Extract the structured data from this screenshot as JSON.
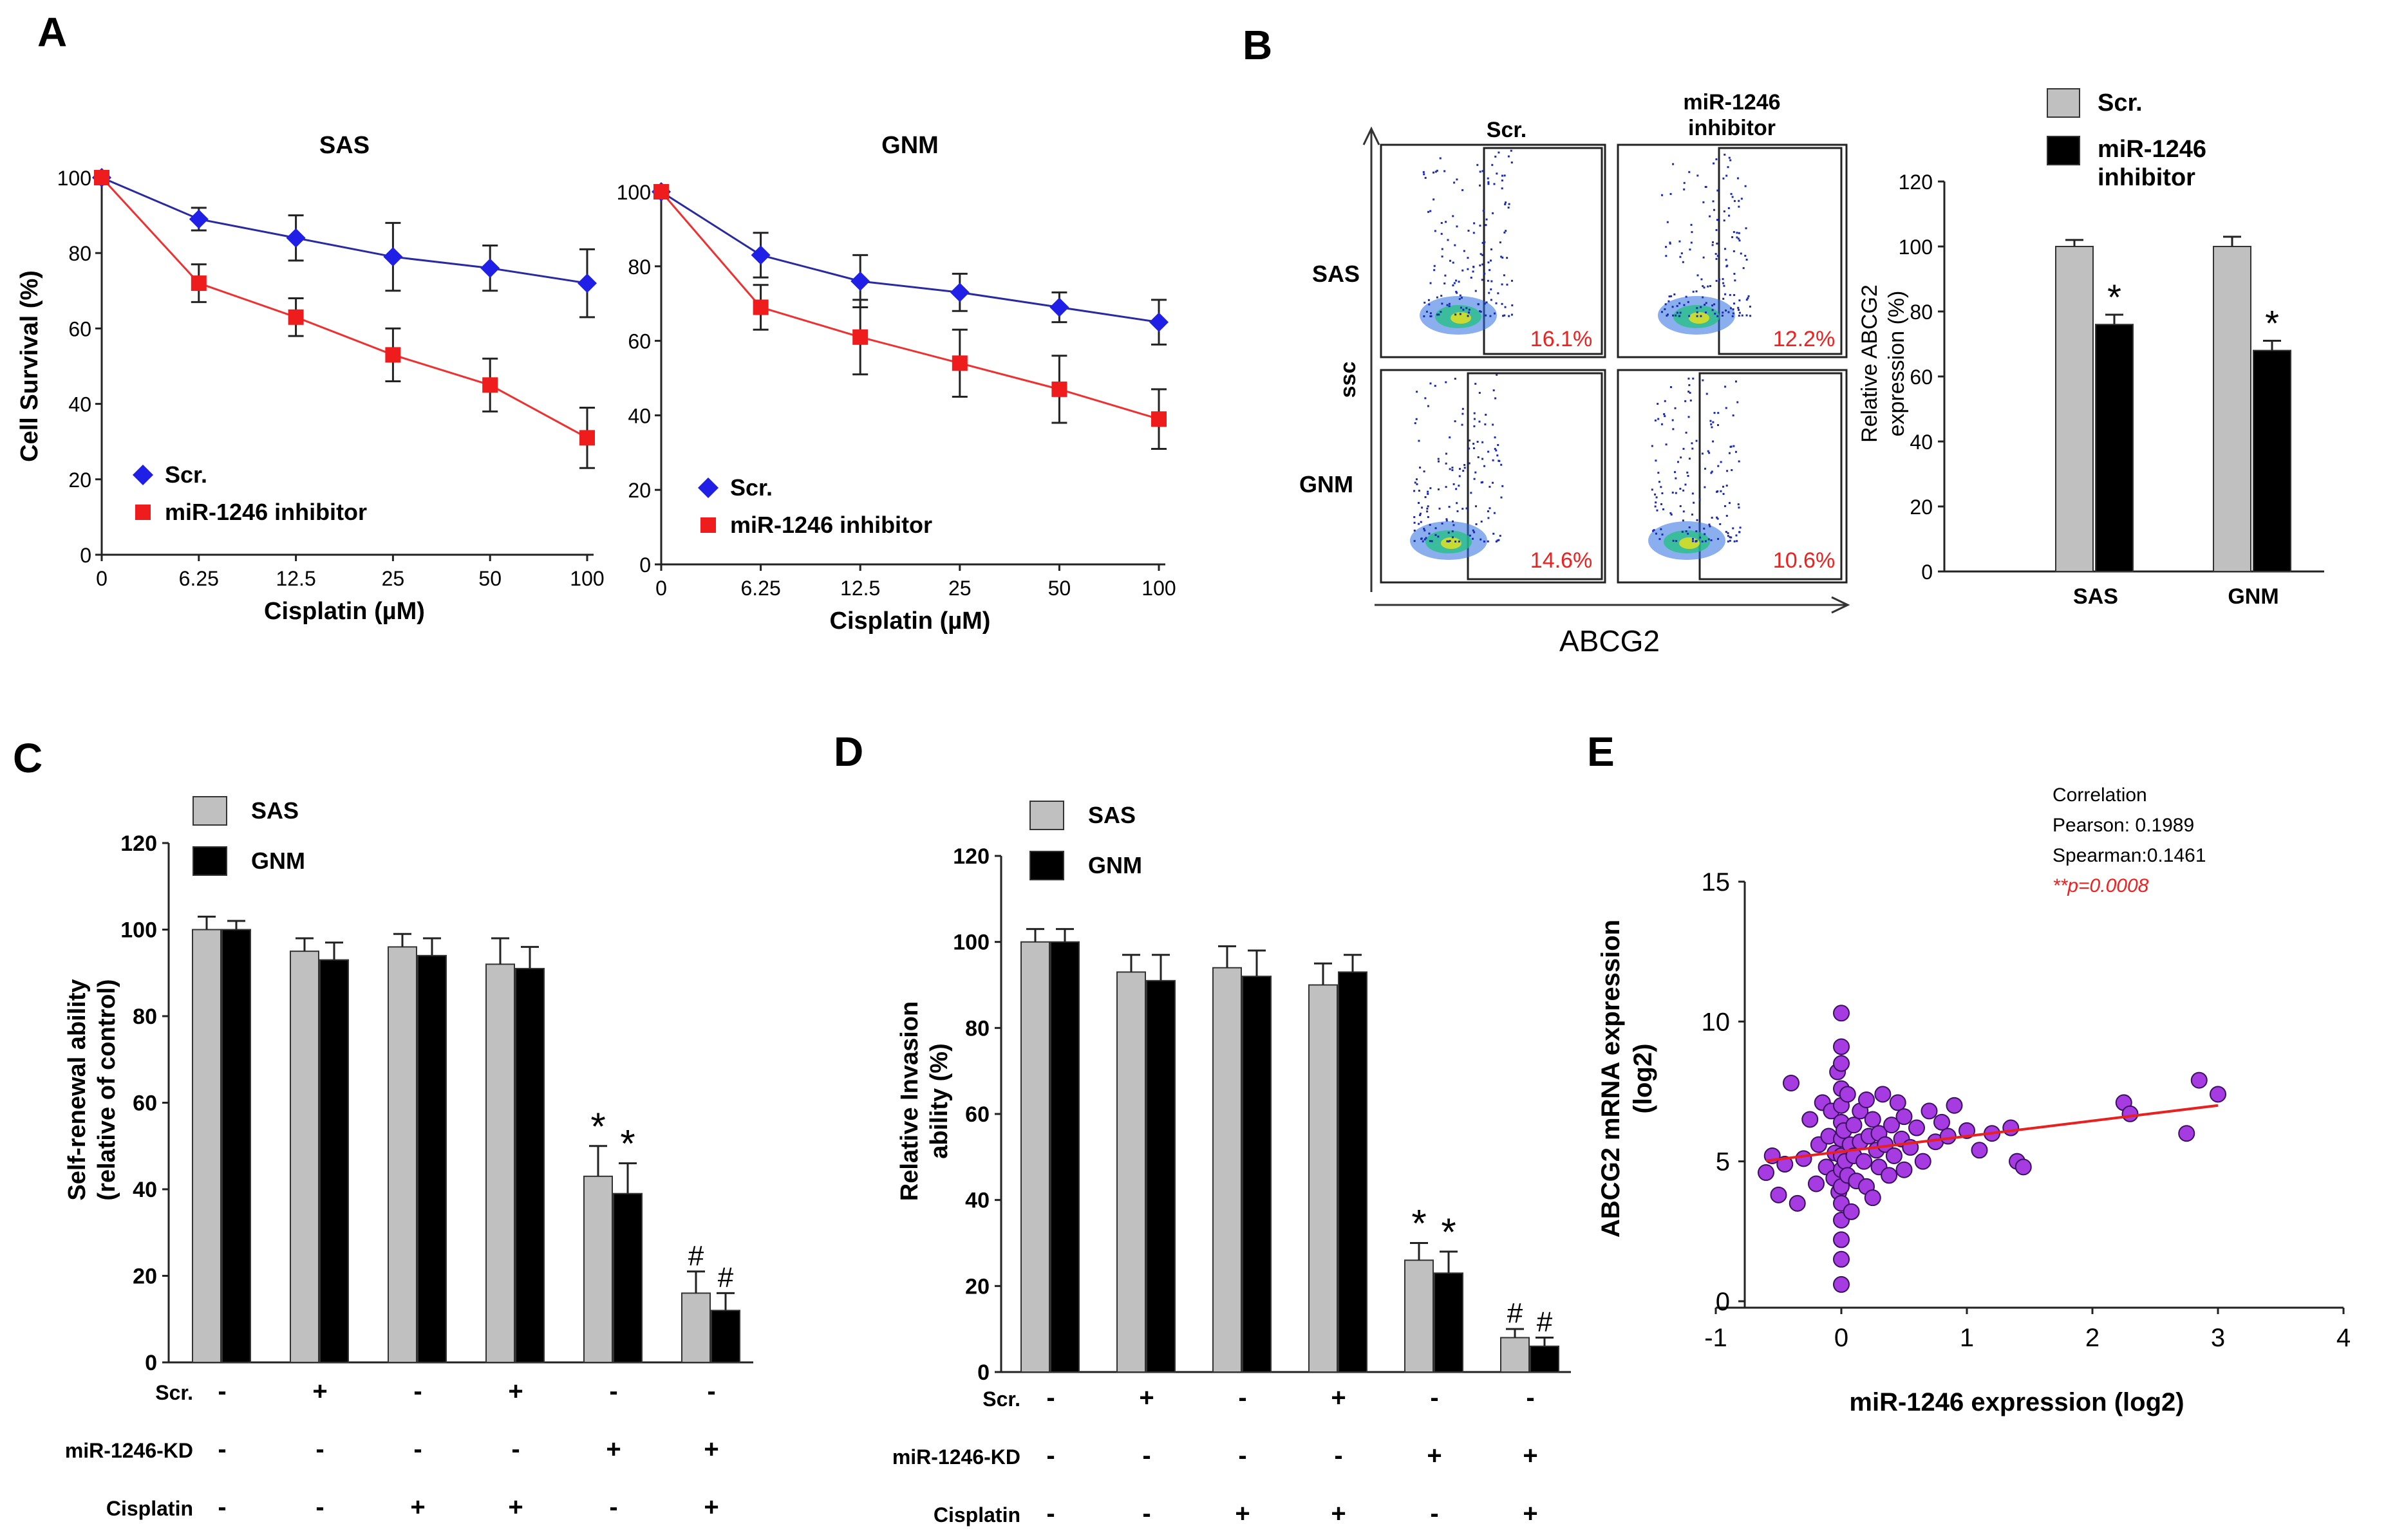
{
  "colors": {
    "scr": "#1f1fe6",
    "inhibitor": "#ee1c1c",
    "sas_bar": "#c0c0c0",
    "gnm_bar": "#000000",
    "scatter": "#a53be0",
    "fit_line": "#e82020",
    "gate_pct": "#ee2020",
    "pvalue": "#ee2020"
  },
  "panels": {
    "A": {
      "letter": "A"
    },
    "B": {
      "letter": "B",
      "flow": {
        "col_labels": [
          "Scr.",
          "miR-1246\ninhibitor"
        ],
        "row_labels": [
          "SAS",
          "GNM"
        ],
        "percentages": [
          [
            "16.1%",
            "12.2%"
          ],
          [
            "14.6%",
            "10.6%"
          ]
        ],
        "xlabel": "ABCG2",
        "ylabel": "ssc"
      }
    },
    "C": {
      "letter": "C"
    },
    "D": {
      "letter": "D"
    },
    "E": {
      "letter": "E",
      "stats": [
        "Correlation",
        "Pearson: 0.1989",
        "Spearman:0.1461"
      ],
      "pvalue": "**p=0.0008"
    }
  },
  "chart_data": [
    {
      "id": "A-SAS",
      "type": "line",
      "title": "SAS",
      "xlabel": "Cisplatin (µM)",
      "ylabel": "Cell Survival (%)",
      "categories": [
        "0",
        "6.25",
        "12.5",
        "25",
        "50",
        "100"
      ],
      "ylim": [
        0,
        100
      ],
      "yticks": [
        0,
        20,
        40,
        60,
        80,
        100
      ],
      "series": [
        {
          "name": "Scr.",
          "marker": "diamond",
          "values": [
            100,
            89,
            84,
            79,
            76,
            72
          ],
          "errors": [
            0,
            3,
            6,
            9,
            6,
            9
          ]
        },
        {
          "name": "miR-1246 inhibitor",
          "marker": "square",
          "values": [
            100,
            72,
            63,
            53,
            45,
            31
          ],
          "errors": [
            0,
            5,
            5,
            7,
            7,
            8
          ]
        }
      ]
    },
    {
      "id": "A-GNM",
      "type": "line",
      "title": "GNM",
      "xlabel": "Cisplatin (µM)",
      "ylabel": "",
      "categories": [
        "0",
        "6.25",
        "12.5",
        "25",
        "50",
        "100"
      ],
      "ylim": [
        0,
        100
      ],
      "yticks": [
        0,
        20,
        40,
        60,
        80,
        100
      ],
      "series": [
        {
          "name": "Scr.",
          "marker": "diamond",
          "values": [
            100,
            83,
            76,
            73,
            69,
            65
          ],
          "errors": [
            0,
            6,
            7,
            5,
            4,
            6
          ]
        },
        {
          "name": "miR-1246 inhibitor",
          "marker": "square",
          "values": [
            100,
            69,
            61,
            54,
            47,
            39
          ],
          "errors": [
            0,
            6,
            10,
            9,
            9,
            8
          ]
        }
      ]
    },
    {
      "id": "B-bar",
      "type": "bar",
      "xlabel": "",
      "ylabel": "Relative ABCG2\nexpression (%)",
      "categories": [
        "SAS",
        "GNM"
      ],
      "ylim": [
        0,
        120
      ],
      "yticks": [
        0,
        20,
        40,
        60,
        80,
        100,
        120
      ],
      "series": [
        {
          "name": "Scr.",
          "values": [
            100,
            100
          ],
          "errors": [
            2,
            3
          ]
        },
        {
          "name": "miR-1246\ninhibitor",
          "values": [
            76,
            68
          ],
          "errors": [
            3,
            3
          ]
        }
      ],
      "annotations": [
        {
          "series": 1,
          "index": 0,
          "text": "*"
        },
        {
          "series": 1,
          "index": 1,
          "text": "*"
        }
      ]
    },
    {
      "id": "C",
      "type": "bar",
      "ylabel": "Self-renewal ability\n(relative of control)",
      "groups": 6,
      "ylim": [
        0,
        120
      ],
      "yticks": [
        0,
        20,
        40,
        60,
        80,
        100,
        120
      ],
      "series": [
        {
          "name": "SAS",
          "values": [
            100,
            95,
            96,
            92,
            43,
            16
          ],
          "errors": [
            3,
            3,
            3,
            6,
            7,
            5
          ]
        },
        {
          "name": "GNM",
          "values": [
            100,
            93,
            94,
            91,
            39,
            12
          ],
          "errors": [
            2,
            4,
            4,
            5,
            7,
            4
          ]
        }
      ],
      "annotations": [
        {
          "series": 0,
          "index": 4,
          "text": "*"
        },
        {
          "series": 1,
          "index": 4,
          "text": "*"
        },
        {
          "series": 0,
          "index": 5,
          "text": "#"
        },
        {
          "series": 1,
          "index": 5,
          "text": "#"
        }
      ],
      "conditions": [
        {
          "label": "Scr.",
          "signs": [
            "-",
            "+",
            "-",
            "+",
            "-",
            "-"
          ]
        },
        {
          "label": "miR-1246-KD",
          "signs": [
            "-",
            "-",
            "-",
            "-",
            "+",
            "+"
          ]
        },
        {
          "label": "Cisplatin",
          "signs": [
            "-",
            "-",
            "+",
            "+",
            "-",
            "+"
          ]
        }
      ]
    },
    {
      "id": "D",
      "type": "bar",
      "ylabel": "Relative Invasion\nability (%)",
      "groups": 6,
      "ylim": [
        0,
        120
      ],
      "yticks": [
        0,
        20,
        40,
        60,
        80,
        100,
        120
      ],
      "series": [
        {
          "name": "SAS",
          "values": [
            100,
            93,
            94,
            90,
            26,
            8
          ],
          "errors": [
            3,
            4,
            5,
            5,
            4,
            2
          ]
        },
        {
          "name": "GNM",
          "values": [
            100,
            91,
            92,
            93,
            23,
            6
          ],
          "errors": [
            3,
            6,
            6,
            4,
            5,
            2
          ]
        }
      ],
      "annotations": [
        {
          "series": 0,
          "index": 4,
          "text": "*"
        },
        {
          "series": 1,
          "index": 4,
          "text": "*"
        },
        {
          "series": 0,
          "index": 5,
          "text": "#"
        },
        {
          "series": 1,
          "index": 5,
          "text": "#"
        }
      ],
      "conditions": [
        {
          "label": "Scr.",
          "signs": [
            "-",
            "+",
            "-",
            "+",
            "-",
            "-"
          ]
        },
        {
          "label": "miR-1246-KD",
          "signs": [
            "-",
            "-",
            "-",
            "-",
            "+",
            "+"
          ]
        },
        {
          "label": "Cisplatin",
          "signs": [
            "-",
            "-",
            "+",
            "+",
            "-",
            "+"
          ]
        }
      ]
    },
    {
      "id": "E",
      "type": "scatter",
      "xlabel": "miR-1246 expression (log2)",
      "ylabel": "ABCG2   mRNA expression\n(log2)",
      "xlim": [
        -1,
        4
      ],
      "ylim": [
        0,
        15
      ],
      "xticks": [
        -1,
        0,
        1,
        2,
        3,
        4
      ],
      "yticks": [
        0,
        5,
        10,
        15
      ],
      "fit": {
        "slope": 0.55,
        "intercept": 5.35
      },
      "points": [
        [
          -0.6,
          4.6
        ],
        [
          -0.55,
          5.2
        ],
        [
          -0.5,
          3.8
        ],
        [
          -0.45,
          4.9
        ],
        [
          -0.4,
          7.8
        ],
        [
          -0.35,
          3.5
        ],
        [
          -0.3,
          5.1
        ],
        [
          -0.25,
          6.5
        ],
        [
          -0.2,
          4.2
        ],
        [
          -0.18,
          5.6
        ],
        [
          -0.15,
          7.1
        ],
        [
          -0.12,
          4.8
        ],
        [
          -0.1,
          5.9
        ],
        [
          -0.08,
          6.8
        ],
        [
          -0.06,
          4.4
        ],
        [
          -0.05,
          5.3
        ],
        [
          -0.03,
          8.2
        ],
        [
          -0.02,
          3.9
        ],
        [
          0,
          10.3
        ],
        [
          0,
          9.1
        ],
        [
          0,
          8.5
        ],
        [
          0,
          7.6
        ],
        [
          0,
          7.0
        ],
        [
          0,
          6.4
        ],
        [
          0,
          5.8
        ],
        [
          0,
          5.2
        ],
        [
          0,
          4.7
        ],
        [
          0,
          4.1
        ],
        [
          0,
          3.5
        ],
        [
          0,
          2.9
        ],
        [
          0,
          2.2
        ],
        [
          0,
          1.5
        ],
        [
          0,
          0.6
        ],
        [
          0.02,
          6.1
        ],
        [
          0.03,
          5.0
        ],
        [
          0.05,
          7.4
        ],
        [
          0.05,
          4.5
        ],
        [
          0.07,
          5.6
        ],
        [
          0.08,
          3.2
        ],
        [
          0.1,
          6.3
        ],
        [
          0.1,
          5.2
        ],
        [
          0.12,
          4.3
        ],
        [
          0.15,
          6.8
        ],
        [
          0.15,
          5.7
        ],
        [
          0.18,
          5.0
        ],
        [
          0.2,
          7.2
        ],
        [
          0.2,
          4.1
        ],
        [
          0.22,
          5.9
        ],
        [
          0.25,
          6.5
        ],
        [
          0.25,
          3.7
        ],
        [
          0.28,
          5.4
        ],
        [
          0.3,
          6.0
        ],
        [
          0.3,
          4.8
        ],
        [
          0.33,
          7.4
        ],
        [
          0.35,
          5.6
        ],
        [
          0.38,
          4.5
        ],
        [
          0.4,
          6.3
        ],
        [
          0.42,
          5.2
        ],
        [
          0.45,
          7.1
        ],
        [
          0.48,
          5.8
        ],
        [
          0.5,
          6.6
        ],
        [
          0.5,
          4.7
        ],
        [
          0.55,
          5.5
        ],
        [
          0.6,
          6.2
        ],
        [
          0.65,
          5.0
        ],
        [
          0.7,
          6.8
        ],
        [
          0.75,
          5.7
        ],
        [
          0.8,
          6.4
        ],
        [
          0.85,
          5.9
        ],
        [
          0.9,
          7.0
        ],
        [
          1.0,
          6.1
        ],
        [
          1.1,
          5.4
        ],
        [
          1.2,
          6.0
        ],
        [
          1.35,
          6.2
        ],
        [
          1.4,
          5.0
        ],
        [
          1.45,
          4.8
        ],
        [
          2.25,
          7.1
        ],
        [
          2.3,
          6.7
        ],
        [
          2.75,
          6.0
        ],
        [
          2.85,
          7.9
        ],
        [
          3.0,
          7.4
        ]
      ]
    }
  ]
}
